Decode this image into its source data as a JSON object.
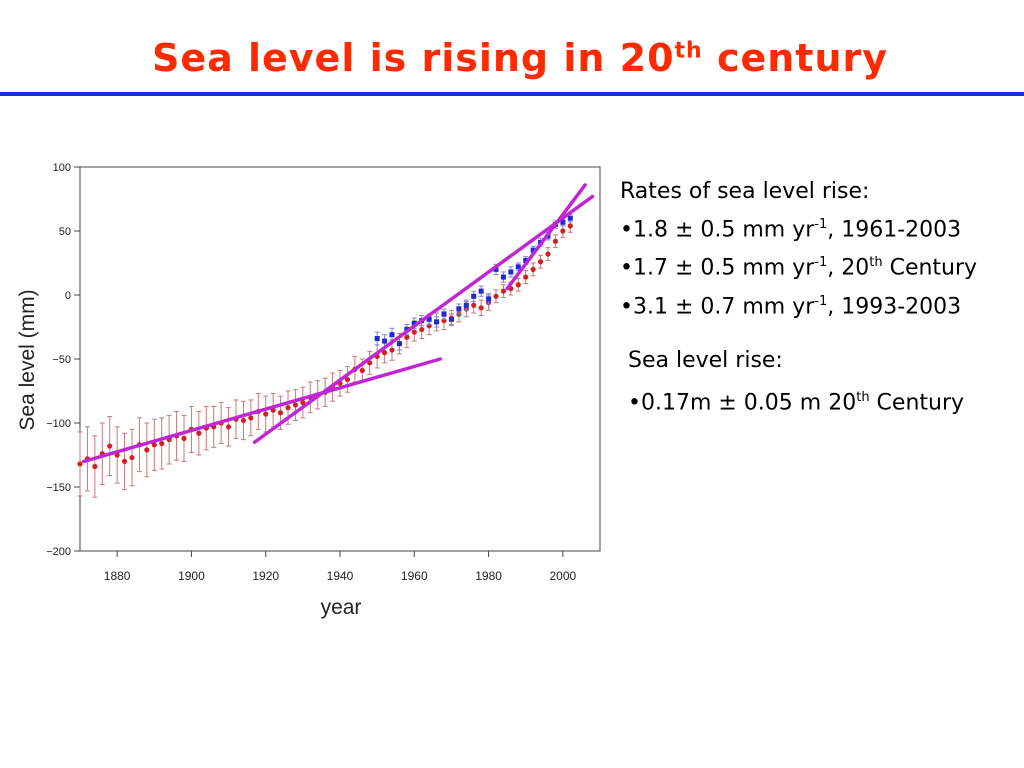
{
  "slide": {
    "title_main": "Sea level is rising in 20",
    "title_sup": "th",
    "title_end": " century"
  },
  "notes": {
    "rates_heading": "Rates of sea level rise:",
    "rates": [
      {
        "text": "•1.8 ± 0.5 mm yr",
        "sup": "-1",
        "tail": ", 1961-2003",
        "tail_sup": "",
        "tail_end": ""
      },
      {
        "text": "•1.7 ± 0.5 mm yr",
        "sup": "-1",
        "tail": ", 20",
        "tail_sup": "th",
        "tail_end": " Century"
      },
      {
        "text": "•3.1 ± 0.7 mm yr",
        "sup": "-1",
        "tail": ", 1993-2003",
        "tail_sup": "",
        "tail_end": ""
      }
    ],
    "rise_heading": "Sea level rise:",
    "rise": {
      "text": "•0.17m ± 0.05 m 20",
      "sup": "th",
      "tail": " Century"
    }
  },
  "chart_data": {
    "type": "scatter",
    "xlabel": "year",
    "ylabel": "Sea level (mm)",
    "xlim": [
      1870,
      2010
    ],
    "ylim": [
      -200,
      100
    ],
    "xticks": [
      1880,
      1900,
      1920,
      1940,
      1960,
      1980,
      2000
    ],
    "yticks": [
      100,
      50,
      0,
      -50,
      -100,
      -150,
      -200
    ],
    "grid": false,
    "colors": {
      "red": "#d42020",
      "blue": "#1f2ad0",
      "errorbar_red": "#c87878",
      "errorbar_blue": "#7a86d8",
      "trend": "#c026d3"
    },
    "series": [
      {
        "color": "red",
        "x": [
          1870,
          1872,
          1874,
          1876,
          1878,
          1880,
          1882,
          1884,
          1886,
          1888,
          1890,
          1892,
          1894,
          1896,
          1898,
          1900,
          1902,
          1904,
          1906,
          1908,
          1910,
          1912,
          1914,
          1916,
          1918,
          1920,
          1922,
          1924,
          1926,
          1928,
          1930,
          1932,
          1934,
          1936,
          1938,
          1940,
          1942,
          1944,
          1946,
          1948,
          1950,
          1952,
          1954,
          1956,
          1958,
          1960,
          1962,
          1964,
          1966,
          1968,
          1970,
          1972,
          1974,
          1976,
          1978,
          1980,
          1982,
          1984,
          1986,
          1988,
          1990,
          1992,
          1994,
          1996,
          1998,
          2000,
          2002
        ],
        "y": [
          -132,
          -128,
          -134,
          -124,
          -118,
          -125,
          -130,
          -127,
          -117,
          -121,
          -117,
          -116,
          -113,
          -110,
          -112,
          -105,
          -108,
          -104,
          -103,
          -100,
          -103,
          -97,
          -98,
          -96,
          -91,
          -93,
          -90,
          -92,
          -88,
          -86,
          -84,
          -80,
          -78,
          -76,
          -72,
          -69,
          -66,
          -58,
          -59,
          -53,
          -48,
          -45,
          -43,
          -38,
          -33,
          -29,
          -27,
          -24,
          -21,
          -20,
          -18,
          -15,
          -11,
          -8,
          -10,
          -6,
          -1,
          3,
          5,
          8,
          14,
          20,
          26,
          32,
          42,
          50,
          54
        ],
        "err": [
          25,
          25,
          24,
          24,
          23,
          22,
          22,
          22,
          21,
          21,
          20,
          20,
          19,
          19,
          18,
          18,
          17,
          17,
          16,
          16,
          15,
          15,
          15,
          14,
          14,
          14,
          13,
          13,
          13,
          12,
          12,
          12,
          11,
          11,
          11,
          10,
          10,
          10,
          9,
          9,
          9,
          8,
          8,
          8,
          8,
          7,
          7,
          7,
          7,
          7,
          6,
          6,
          6,
          6,
          6,
          6,
          5,
          5,
          5,
          5,
          5,
          5,
          5,
          5,
          5,
          5,
          5
        ]
      },
      {
        "color": "blue",
        "x": [
          1950,
          1952,
          1954,
          1956,
          1958,
          1960,
          1962,
          1964,
          1966,
          1968,
          1970,
          1972,
          1974,
          1976,
          1978,
          1980,
          1982,
          1984,
          1986,
          1988,
          1990,
          1992,
          1994,
          1996,
          1998,
          2000,
          2002
        ],
        "y": [
          -34,
          -36,
          -31,
          -38,
          -27,
          -22,
          -20,
          -19,
          -21,
          -15,
          -19,
          -11,
          -8,
          -1,
          3,
          -3,
          20,
          14,
          18,
          22,
          27,
          35,
          41,
          46,
          55,
          57,
          60
        ],
        "err": [
          5,
          5,
          5,
          5,
          4,
          4,
          4,
          4,
          4,
          4,
          4,
          4,
          4,
          4,
          4,
          4,
          4,
          4,
          4,
          3,
          3,
          3,
          3,
          3,
          3,
          3,
          3
        ]
      }
    ],
    "trend_lines": [
      {
        "x": [
          1871,
          1967
        ],
        "y": [
          -130,
          -50
        ]
      },
      {
        "x": [
          1917,
          2008
        ],
        "y": [
          -115,
          77
        ]
      },
      {
        "x": [
          1985,
          2006
        ],
        "y": [
          5,
          86
        ]
      }
    ]
  }
}
